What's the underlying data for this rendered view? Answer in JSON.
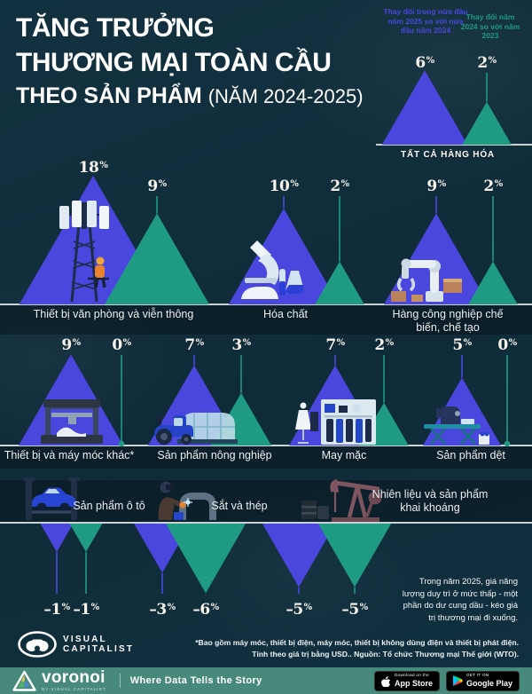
{
  "header": {
    "title_line1": "TĂNG TRƯỞNG",
    "title_line2": "THƯƠNG MẠI TOÀN CẦU",
    "title_line3_bold": "THEO SẢN PHẨM",
    "title_line3_regular": "(NĂM 2024-2025)"
  },
  "chart_data": {
    "type": "pictogram-triangle",
    "unit": "%",
    "scale_note": "triangle height proportional to sqrt(|value|); values are percent change in trade value",
    "legend": [
      {
        "label": "Thay đổi trong nửa đầu năm 2025 so với nửa đầu năm 2024",
        "color": "#4a47de"
      },
      {
        "label": "Thay đổi năm 2024 so với năm 2023",
        "color": "#1f9b83"
      }
    ],
    "groups": [
      {
        "label": "TẤT CẢ HÀNG HÓA",
        "change_2025_h1": 6,
        "change_2024": 2,
        "icon": null
      },
      {
        "label": "Thiết bị văn phòng và viễn thông",
        "change_2025_h1": 18,
        "change_2024": 9,
        "icon": "cell-tower-icon"
      },
      {
        "label": "Hóa chất",
        "change_2025_h1": 10,
        "change_2024": 2,
        "icon": "microscope-icon"
      },
      {
        "label": "Hàng công nghiệp chế biến, chế tạo",
        "change_2025_h1": 9,
        "change_2024": 2,
        "icon": "robot-arm-icon"
      },
      {
        "label": "Thiết bị và máy móc khác*",
        "change_2025_h1": 9,
        "change_2024": 0,
        "icon": "machine-printer-icon"
      },
      {
        "label": "Sản phẩm nông nghiệp",
        "change_2025_h1": 7,
        "change_2024": 3,
        "icon": "tractor-greenhouse-icon"
      },
      {
        "label": "May mặc",
        "change_2025_h1": 7,
        "change_2024": 2,
        "icon": "clothing-store-icon"
      },
      {
        "label": "Sản phẩm dệt",
        "change_2025_h1": 5,
        "change_2024": 0,
        "icon": "sewing-machine-icon"
      },
      {
        "label": "Sản phẩm ô tô",
        "change_2025_h1": -1,
        "change_2024": -1,
        "icon": "car-lift-icon"
      },
      {
        "label": "Sắt và thép",
        "change_2025_h1": -3,
        "change_2024": -6,
        "icon": "welder-icon"
      },
      {
        "label": "Nhiên liệu và sản phẩm khai khoáng",
        "change_2025_h1": -5,
        "change_2024": -5,
        "icon": "oil-pumpjack-icon"
      }
    ]
  },
  "annotation": "Trong năm 2025, giá năng lượng duy trì ở mức thấp - một phần do dư cung dầu - kéo giá trị thương mại đi xuống.",
  "footnotes": {
    "line1": "*Bao gồm máy móc, thiết bị điện, máy móc, thiết bị không dùng điện và thiết bị phát điện.",
    "line2": "Tính theo giá trị bằng USD.. Nguồn: Tổ chức Thương mại Thế giới (WTO)."
  },
  "branding": {
    "visual_capitalist_line1": "VISUAL",
    "visual_capitalist_line2": "CAPITALIST",
    "voronoi_name": "voronoi",
    "voronoi_byline": "BY VISUAL CAPITALIST",
    "tagline": "Where Data Tells the Story",
    "app_store_pre": "Download on the",
    "app_store_name": "App Store",
    "google_play_pre": "GET IT ON",
    "google_play_name": "Google Play"
  },
  "colors": {
    "series_2025": "#3b3bef",
    "series_2024": "#1b947f",
    "background": "#112f3e",
    "bottom_bar": "#478a7b",
    "baseline": "#d9e2e4"
  }
}
